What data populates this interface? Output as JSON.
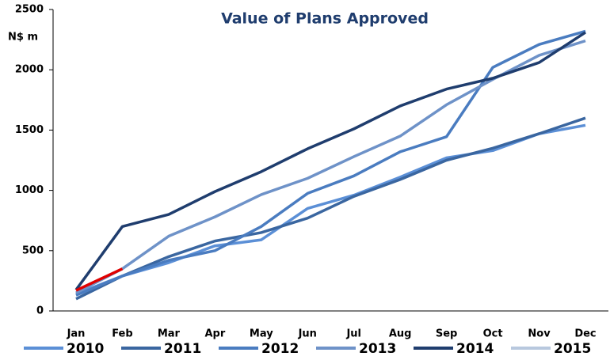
{
  "chart_data": {
    "type": "line",
    "title": "Value of Plans Approved",
    "y_label": "N$ m",
    "categories": [
      "Jan",
      "Feb",
      "Mar",
      "Apr",
      "May",
      "Jun",
      "Jul",
      "Aug",
      "Sep",
      "Oct",
      "Nov",
      "Dec"
    ],
    "series": [
      {
        "name": "2010",
        "color": "#5b8fd6",
        "values": [
          140,
          290,
          400,
          540,
          590,
          850,
          960,
          1110,
          1270,
          1330,
          1470,
          1540
        ]
      },
      {
        "name": "2011",
        "color": "#3a66a0",
        "values": [
          100,
          290,
          450,
          580,
          650,
          770,
          950,
          1090,
          1250,
          1350,
          1470,
          1600
        ]
      },
      {
        "name": "2012",
        "color": "#4a7cc0",
        "values": [
          130,
          290,
          420,
          500,
          700,
          975,
          1120,
          1320,
          1445,
          2020,
          2210,
          2320
        ]
      },
      {
        "name": "2013",
        "color": "#6e92c8",
        "values": [
          150,
          350,
          620,
          780,
          965,
          1100,
          1280,
          1450,
          1710,
          1920,
          2120,
          2240
        ]
      },
      {
        "name": "2014",
        "color": "#1f3d6e",
        "values": [
          175,
          700,
          800,
          990,
          1155,
          1345,
          1510,
          1700,
          1840,
          1930,
          2060,
          2310
        ]
      },
      {
        "name": "2015",
        "color": "#b8c8de",
        "line_color": "#e00000",
        "values": [
          170,
          350,
          null,
          null,
          null,
          null,
          null,
          null,
          null,
          null,
          null,
          null
        ]
      }
    ],
    "ylim": [
      0,
      2500
    ],
    "yticks": [
      0,
      500,
      1000,
      1500,
      2000,
      2500
    ],
    "grid": false,
    "legend": "bottom"
  }
}
